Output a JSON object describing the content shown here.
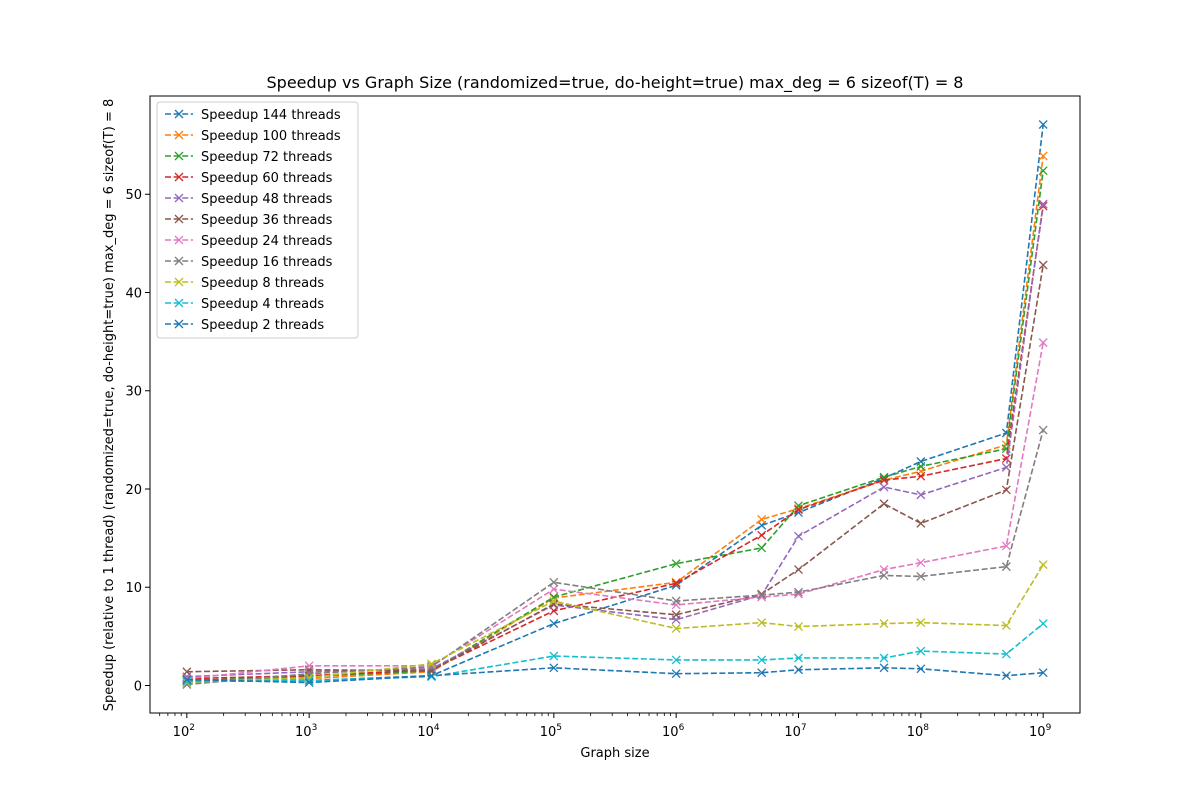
{
  "chart_data": {
    "type": "line",
    "title": "Speedup vs Graph Size (randomized=true, do-height=true) max_deg = 6 sizeof(T) = 8",
    "xlabel": "Graph size",
    "ylabel": "Speedup (relative to 1 thread) (randomized=true, do-height=true) max_deg = 6 sizeof(T) = 8",
    "x_scale": "log",
    "xlim": [
      50,
      2000000000
    ],
    "ylim": [
      -2.8,
      60
    ],
    "grid": false,
    "legend_position": "upper-left",
    "line_style": "dashed",
    "marker": "x",
    "x_ticks": [
      {
        "value": 100,
        "base": "10",
        "exp": "2"
      },
      {
        "value": 1000,
        "base": "10",
        "exp": "3"
      },
      {
        "value": 10000,
        "base": "10",
        "exp": "4"
      },
      {
        "value": 100000,
        "base": "10",
        "exp": "5"
      },
      {
        "value": 1000000,
        "base": "10",
        "exp": "6"
      },
      {
        "value": 10000000,
        "base": "10",
        "exp": "7"
      },
      {
        "value": 100000000,
        "base": "10",
        "exp": "8"
      },
      {
        "value": 1000000000,
        "base": "10",
        "exp": "9"
      }
    ],
    "y_ticks": [
      {
        "value": 0,
        "label": "0"
      },
      {
        "value": 10,
        "label": "10"
      },
      {
        "value": 20,
        "label": "20"
      },
      {
        "value": 30,
        "label": "30"
      },
      {
        "value": 40,
        "label": "40"
      },
      {
        "value": 50,
        "label": "50"
      }
    ],
    "x": [
      100,
      1000,
      10000,
      100000,
      1000000,
      5000000,
      10000000,
      50000000,
      100000000,
      500000000,
      1000000000
    ],
    "series": [
      {
        "name": "Speedup 144 threads",
        "color": "#1f77b4",
        "values": [
          0.6,
          0.5,
          1.0,
          6.3,
          10.2,
          16.3,
          17.6,
          21.1,
          22.8,
          25.7,
          57.1
        ]
      },
      {
        "name": "Speedup 100 threads",
        "color": "#ff7f0e",
        "values": [
          0.5,
          0.7,
          1.4,
          8.9,
          10.5,
          16.9,
          18.0,
          20.9,
          21.8,
          24.5,
          53.9
        ]
      },
      {
        "name": "Speedup 72 threads",
        "color": "#2ca02c",
        "values": [
          0.5,
          0.9,
          1.5,
          9.0,
          12.4,
          14.0,
          18.3,
          21.2,
          22.3,
          24.1,
          52.4
        ]
      },
      {
        "name": "Speedup 60 threads",
        "color": "#d62728",
        "values": [
          0.7,
          1.0,
          1.6,
          7.6,
          10.4,
          15.3,
          17.9,
          20.9,
          21.3,
          23.1,
          48.8
        ]
      },
      {
        "name": "Speedup 48 threads",
        "color": "#9467bd",
        "values": [
          0.9,
          1.4,
          1.7,
          8.2,
          6.7,
          9.2,
          15.2,
          20.2,
          19.4,
          22.2,
          49.0
        ]
      },
      {
        "name": "Speedup 36 threads",
        "color": "#8c564b",
        "values": [
          1.4,
          1.6,
          1.5,
          8.3,
          7.2,
          9.3,
          11.8,
          18.5,
          16.5,
          19.9,
          42.8
        ]
      },
      {
        "name": "Speedup 24 threads",
        "color": "#e377c2",
        "values": [
          0.7,
          2.0,
          2.0,
          9.8,
          8.2,
          9.0,
          9.3,
          11.8,
          12.5,
          14.2,
          34.9
        ]
      },
      {
        "name": "Speedup 16 threads",
        "color": "#7f7f7f",
        "values": [
          0.1,
          1.2,
          1.9,
          10.5,
          8.6,
          9.2,
          9.5,
          11.2,
          11.1,
          12.1,
          26.0
        ]
      },
      {
        "name": "Speedup 8 threads",
        "color": "#bcbd22",
        "values": [
          0.3,
          0.8,
          2.2,
          8.6,
          5.8,
          6.4,
          6.0,
          6.3,
          6.4,
          6.1,
          12.3
        ]
      },
      {
        "name": "Speedup 4 threads",
        "color": "#17becf",
        "values": [
          0.4,
          0.5,
          0.9,
          3.0,
          2.6,
          2.6,
          2.8,
          2.8,
          3.5,
          3.2,
          6.3
        ]
      },
      {
        "name": "Speedup 2 threads",
        "color": "#1f77b4",
        "values": [
          0.6,
          0.3,
          1.0,
          1.8,
          1.2,
          1.3,
          1.6,
          1.8,
          1.7,
          1.0,
          1.3
        ]
      }
    ]
  }
}
